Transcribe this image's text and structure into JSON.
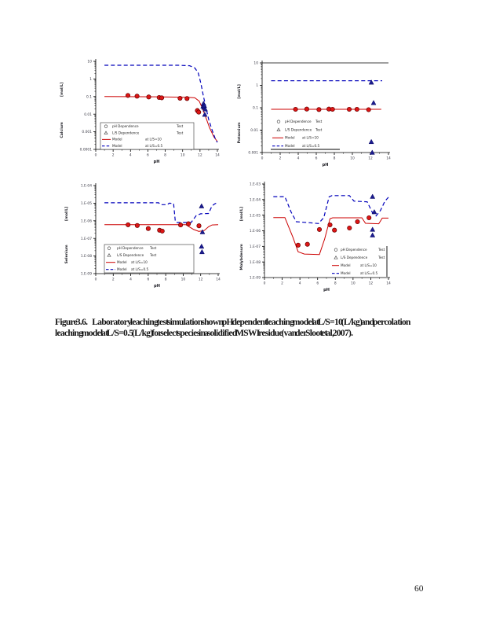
{
  "page": {
    "number": "60"
  },
  "caption": {
    "label": "Figure 3.6.",
    "body": "Laboratory leaching test simulation shown pH dependent leaching model at L/S=10 (L/kg) and percolation leaching model at L/S=0.5 (L/kg) for select species in a solidified MSWI residue (van der Sloot et al, 2007)."
  },
  "colors": {
    "model_ls10": "#cc0000",
    "model_ls05": "#0000bb",
    "ph_marker": "#dd1515",
    "ph_marker_edge": "#660000",
    "ls_marker": "#1c1c8f",
    "axis": "#000000",
    "tick_text": "#3a3a46",
    "label_text": "#15151c"
  },
  "legend": {
    "rows": [
      {
        "marker": "circle-outline",
        "c1": "pH Dependence",
        "c2": "Test"
      },
      {
        "marker": "triangle-outline",
        "c1": "L/S Dependence",
        "c2": "Test"
      },
      {
        "marker": "red-solid-line",
        "c1": "Model",
        "c2": "at L/S=10"
      },
      {
        "marker": "blue-dashed-line",
        "c1": "Model",
        "c2": "at L/S=0.5"
      }
    ]
  },
  "chart_data": [
    {
      "type": "line+scatter",
      "name": "calcium",
      "ylabel": "Calcium",
      "units": "[mol/L]",
      "xlabel": "pH",
      "xlim": [
        0,
        14
      ],
      "xticks": [
        0,
        2,
        4,
        6,
        8,
        10,
        12,
        14
      ],
      "ylog_range": [
        1,
        -4
      ],
      "ytick_labels": [
        "10",
        "1",
        "0.1",
        "0.01",
        "0.001",
        "0.0001"
      ],
      "grid": false,
      "legend_position": "lower-left-inside",
      "series": [
        {
          "name": "Model at L/S=10",
          "style": "red-solid",
          "points": [
            [
              1,
              0.1
            ],
            [
              7,
              0.097
            ],
            [
              10.5,
              0.09
            ],
            [
              11.4,
              0.085
            ],
            [
              11.9,
              0.055
            ],
            [
              12.3,
              0.02
            ],
            [
              12.7,
              0.006
            ],
            [
              13.1,
              0.0017
            ],
            [
              13.6,
              0.0005
            ],
            [
              14,
              0.00028
            ]
          ]
        },
        {
          "name": "Model at L/S=0.5",
          "style": "blue-dashed",
          "points": [
            [
              1,
              6
            ],
            [
              9.5,
              6
            ],
            [
              10.8,
              5.6
            ],
            [
              11.4,
              4.2
            ],
            [
              11.8,
              2.2
            ],
            [
              12.1,
              0.55
            ],
            [
              12.4,
              0.1
            ],
            [
              12.7,
              0.022
            ],
            [
              13,
              0.005
            ],
            [
              13.4,
              0.0012
            ],
            [
              13.8,
              0.00035
            ],
            [
              14,
              0.00025
            ]
          ]
        },
        {
          "name": "pH Dependence Test",
          "style": "red-circles",
          "points": [
            [
              3.7,
              0.115
            ],
            [
              4.75,
              0.105
            ],
            [
              6.1,
              0.095
            ],
            [
              7.3,
              0.088
            ],
            [
              7.6,
              0.085
            ],
            [
              9.7,
              0.08
            ],
            [
              10.5,
              0.077
            ],
            [
              11.7,
              0.016
            ],
            [
              11.85,
              0.013
            ]
          ]
        },
        {
          "name": "L/S Dependence Test",
          "style": "blue-triangles",
          "points": [
            [
              12.35,
              0.028
            ],
            [
              12.4,
              0.04
            ],
            [
              12.45,
              0.024
            ],
            [
              12.5,
              0.03
            ],
            [
              12.55,
              0.0095
            ],
            [
              12.6,
              0.019
            ]
          ]
        }
      ]
    },
    {
      "type": "line+scatter",
      "name": "potassium",
      "ylabel": "Potassium",
      "units": "[mol/L]",
      "xlabel": "pH",
      "xlim": [
        0,
        14
      ],
      "xticks": [
        0,
        2,
        4,
        6,
        8,
        10,
        12,
        14
      ],
      "ylog_range": [
        1,
        -3
      ],
      "ytick_labels": [
        "10",
        "1",
        "0.1",
        "0.01",
        "0.001"
      ],
      "grid": false,
      "top_border": true,
      "legend_position": "lower-left-inside",
      "series": [
        {
          "name": "Model at L/S=10",
          "style": "red-solid",
          "points": [
            [
              1,
              0.085
            ],
            [
              13.2,
              0.085
            ]
          ]
        },
        {
          "name": "Model at L/S=0.5",
          "style": "blue-dashed",
          "points": [
            [
              1,
              1.6
            ],
            [
              13.3,
              1.6
            ]
          ]
        },
        {
          "name": "pH Dependence Test",
          "style": "red-circles",
          "points": [
            [
              3.7,
              0.085
            ],
            [
              4.95,
              0.087
            ],
            [
              6.3,
              0.083
            ],
            [
              7.4,
              0.087
            ],
            [
              7.8,
              0.085
            ],
            [
              9.65,
              0.085
            ],
            [
              10.5,
              0.085
            ],
            [
              11.8,
              0.082
            ]
          ]
        },
        {
          "name": "L/S Dependence Test",
          "style": "blue-triangles",
          "points": [
            [
              12.1,
              1.35
            ],
            [
              12.35,
              0.165
            ],
            [
              12.1,
              0.003
            ],
            [
              12.2,
              0.001
            ]
          ]
        }
      ]
    },
    {
      "type": "line+scatter",
      "name": "selenium",
      "ylabel": "Selenium",
      "units": "[mol/L]",
      "xlabel": "pH",
      "xlim": [
        0,
        14
      ],
      "xticks": [
        0,
        2,
        4,
        6,
        8,
        10,
        12,
        14
      ],
      "ylog_range": [
        -4,
        -9
      ],
      "ytick_labels": [
        "1.E-04",
        "1.E-05",
        "1.E-06",
        "1.E-07",
        "1.E-08",
        "1.E-09"
      ],
      "grid": false,
      "legend_position": "lower-left-inside",
      "series": [
        {
          "name": "Model at L/S=10",
          "style": "red-solid",
          "points": [
            [
              1,
              6e-07
            ],
            [
              10.3,
              6e-07
            ],
            [
              11.2,
              3.2e-07
            ],
            [
              11.8,
              2.5e-07
            ],
            [
              12.4,
              2.8e-07
            ],
            [
              12.9,
              4.6e-07
            ],
            [
              13.3,
              5.8e-07
            ],
            [
              14,
              6e-07
            ]
          ]
        },
        {
          "name": "Model at L/S=0.5",
          "style": "blue-dashed",
          "points": [
            [
              1,
              1.05e-05
            ],
            [
              7.2,
              1.05e-05
            ],
            [
              7.4,
              8.2e-06
            ],
            [
              8.2,
              8.2e-06
            ],
            [
              8.4,
              1e-05
            ],
            [
              8.9,
              9.5e-06
            ],
            [
              9.1,
              9e-07
            ],
            [
              9.3,
              8e-07
            ],
            [
              10.9,
              8e-07
            ],
            [
              11.5,
              2e-06
            ],
            [
              12.0,
              2.5e-06
            ],
            [
              12.9,
              2.6e-06
            ],
            [
              13.3,
              7e-06
            ],
            [
              13.6,
              9e-06
            ],
            [
              14,
              1.15e-05
            ]
          ]
        },
        {
          "name": "pH Dependence Test",
          "style": "red-circles",
          "points": [
            [
              3.7,
              5.9e-07
            ],
            [
              4.75,
              5.4e-07
            ],
            [
              6.0,
              3.6e-07
            ],
            [
              7.3,
              2.9e-07
            ],
            [
              7.6,
              2.6e-07
            ],
            [
              9.7,
              5.8e-07
            ],
            [
              10.6,
              6.8e-07
            ],
            [
              11.8,
              5.2e-07
            ]
          ]
        },
        {
          "name": "L/S Dependence Test",
          "style": "blue-triangles",
          "points": [
            [
              12.1,
              6.8e-06
            ],
            [
              12.2,
              2.3e-07
            ],
            [
              12.1,
              3.5e-08
            ],
            [
              12.15,
              1.7e-08
            ]
          ]
        }
      ]
    },
    {
      "type": "line+scatter",
      "name": "molybdenum",
      "ylabel": "Molybdenum",
      "units": "[mol/L]",
      "xlabel": "pH",
      "xlim": [
        0,
        14
      ],
      "xticks": [
        0,
        2,
        4,
        6,
        8,
        10,
        12,
        14
      ],
      "ylog_range": [
        -3,
        -9
      ],
      "ytick_labels": [
        "1.E-03",
        "1.E-04",
        "1.E-05",
        "1.E-06",
        "1.E-07",
        "1.E-08",
        "1.E-09"
      ],
      "grid": false,
      "legend_position": "lower-center-inside",
      "series": [
        {
          "name": "Model at L/S=10",
          "style": "red-solid",
          "points": [
            [
              1,
              7e-06
            ],
            [
              2.3,
              7e-06
            ],
            [
              3.2,
              4e-07
            ],
            [
              3.8,
              4.5e-08
            ],
            [
              4.5,
              3.2e-08
            ],
            [
              6.2,
              3e-08
            ],
            [
              6.8,
              3e-07
            ],
            [
              7.4,
              6e-06
            ],
            [
              7.7,
              6.8e-06
            ],
            [
              11.0,
              6.8e-06
            ],
            [
              11.4,
              3e-06
            ],
            [
              12.9,
              2.8e-06
            ],
            [
              13.3,
              6.5e-06
            ],
            [
              14,
              6.5e-06
            ]
          ]
        },
        {
          "name": "Model at L/S=0.5",
          "style": "blue-dashed",
          "points": [
            [
              1,
              0.000155
            ],
            [
              2.3,
              0.000155
            ],
            [
              3.0,
              1.6e-05
            ],
            [
              3.6,
              3.8e-06
            ],
            [
              5.0,
              3.3e-06
            ],
            [
              6.1,
              2.9e-06
            ],
            [
              6.7,
              7e-06
            ],
            [
              7.3,
              0.00015
            ],
            [
              7.6,
              0.00018
            ],
            [
              9.6,
              0.00018
            ],
            [
              10.1,
              8e-05
            ],
            [
              11.6,
              7.2e-05
            ],
            [
              12.2,
              1.4e-05
            ],
            [
              12.6,
              9e-06
            ],
            [
              13.1,
              2e-05
            ],
            [
              13.6,
              8e-05
            ],
            [
              14,
              0.00014
            ]
          ]
        },
        {
          "name": "pH Dependence Test",
          "style": "red-circles",
          "points": [
            [
              3.8,
              1.2e-07
            ],
            [
              4.85,
              1.35e-07
            ],
            [
              6.2,
              1.2e-06
            ],
            [
              7.4,
              2.4e-06
            ],
            [
              7.9,
              1.1e-06
            ],
            [
              9.6,
              1.5e-06
            ],
            [
              10.5,
              3.8e-06
            ],
            [
              11.8,
              6.8e-06
            ]
          ]
        },
        {
          "name": "L/S Dependence Test",
          "style": "blue-triangles",
          "points": [
            [
              12.2,
              0.000155
            ],
            [
              12.4,
              1.6e-05
            ],
            [
              12.2,
              1.2e-06
            ],
            [
              12.2,
              5.2e-07
            ]
          ]
        }
      ]
    }
  ]
}
